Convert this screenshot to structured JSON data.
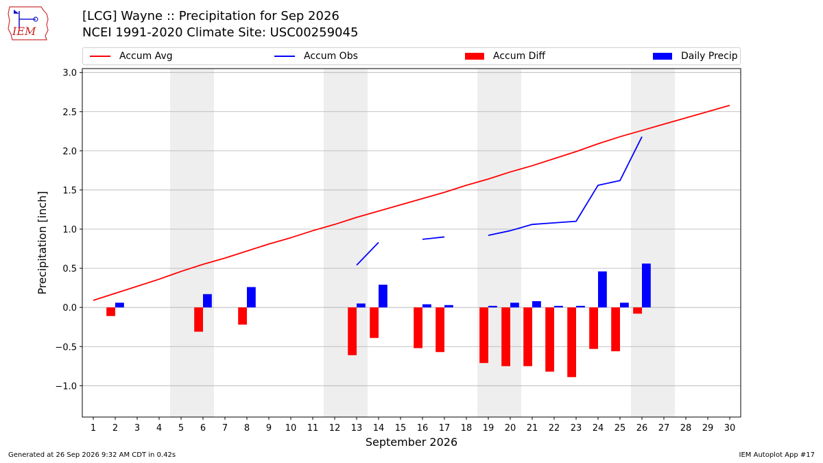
{
  "header": {
    "logo_text": "IEM",
    "title_line1": "[LCG] Wayne :: Precipitation for Sep 2026",
    "title_line2": "NCEI 1991-2020 Climate Site: USC00259045"
  },
  "footer": {
    "generated": "Generated at 26 Sep 2026 9:32 AM CDT in 0.42s",
    "app": "IEM Autoplot App #17"
  },
  "colors": {
    "avg": "#ff0000",
    "obs": "#0000ff",
    "diff": "#ff0000",
    "daily": "#0000ff",
    "weekend": "#eeeeee",
    "grid": "#b0b0b0"
  },
  "chart_data": {
    "type": "bar",
    "xlabel": "September 2026",
    "ylabel": "Precipitation [inch]",
    "xlim": [
      0.5,
      30.5
    ],
    "ylim": [
      -1.4,
      3.05
    ],
    "x_ticks": [
      1,
      2,
      3,
      4,
      5,
      6,
      7,
      8,
      9,
      10,
      11,
      12,
      13,
      14,
      15,
      16,
      17,
      18,
      19,
      20,
      21,
      22,
      23,
      24,
      25,
      26,
      27,
      28,
      29,
      30
    ],
    "y_ticks": [
      -1.0,
      -0.5,
      0.0,
      0.5,
      1.0,
      1.5,
      2.0,
      2.5,
      3.0
    ],
    "y_tick_labels": [
      "−1.0",
      "−0.5",
      "0.0",
      "0.5",
      "1.0",
      "1.5",
      "2.0",
      "2.5",
      "3.0"
    ],
    "weekend_shading": [
      [
        4.5,
        6.5
      ],
      [
        11.5,
        13.5
      ],
      [
        18.5,
        20.5
      ],
      [
        25.5,
        27.5
      ]
    ],
    "grid": "y",
    "legend": {
      "placement": "top",
      "entries": [
        "Accum Avg",
        "Accum Obs",
        "Accum Diff",
        "Daily Precip"
      ]
    },
    "series": [
      {
        "name": "Accum Avg",
        "kind": "line",
        "x": [
          1,
          2,
          3,
          4,
          5,
          6,
          7,
          8,
          9,
          10,
          11,
          12,
          13,
          14,
          15,
          16,
          17,
          18,
          19,
          20,
          21,
          22,
          23,
          24,
          25,
          26,
          27,
          28,
          29,
          30
        ],
        "values": [
          0.09,
          0.18,
          0.27,
          0.36,
          0.46,
          0.55,
          0.63,
          0.72,
          0.81,
          0.89,
          0.98,
          1.06,
          1.15,
          1.23,
          1.31,
          1.39,
          1.47,
          1.56,
          1.64,
          1.73,
          1.81,
          1.9,
          1.99,
          2.09,
          2.18,
          2.26,
          2.34,
          2.42,
          2.5,
          2.58
        ]
      },
      {
        "name": "Accum Obs",
        "kind": "line",
        "segments": [
          {
            "x": [
              13,
              14
            ],
            "values": [
              0.54,
              0.83
            ]
          },
          {
            "x": [
              16,
              17
            ],
            "values": [
              0.87,
              0.9
            ]
          },
          {
            "x": [
              19,
              20,
              21,
              22,
              23,
              24,
              25,
              26
            ],
            "values": [
              0.92,
              0.98,
              1.06,
              1.08,
              1.1,
              1.56,
              1.62,
              2.18
            ]
          }
        ]
      },
      {
        "name": "Accum Diff",
        "kind": "bar",
        "x": [
          2,
          6,
          8,
          13,
          14,
          16,
          17,
          19,
          20,
          21,
          22,
          23,
          24,
          25,
          26
        ],
        "values": [
          -0.11,
          -0.31,
          -0.22,
          -0.61,
          -0.39,
          -0.52,
          -0.57,
          -0.71,
          -0.75,
          -0.75,
          -0.82,
          -0.89,
          -0.53,
          -0.56,
          -0.08
        ]
      },
      {
        "name": "Daily Precip",
        "kind": "bar",
        "x": [
          2,
          6,
          8,
          13,
          14,
          16,
          17,
          19,
          20,
          21,
          22,
          23,
          24,
          25,
          26
        ],
        "values": [
          0.06,
          0.17,
          0.26,
          0.05,
          0.29,
          0.04,
          0.03,
          0.02,
          0.06,
          0.08,
          0.02,
          0.02,
          0.46,
          0.06,
          0.56
        ]
      }
    ]
  }
}
